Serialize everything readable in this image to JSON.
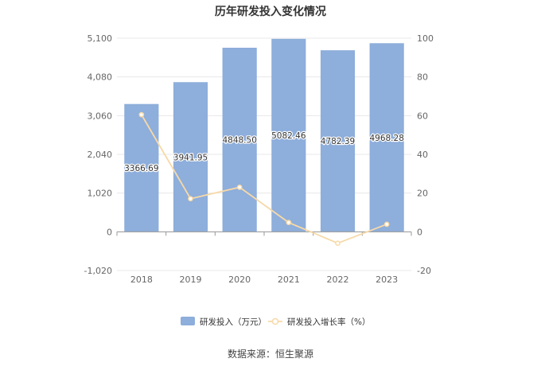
{
  "title": "历年研发投入变化情况",
  "source": "数据来源：恒生聚源",
  "chart_data": {
    "type": "bar",
    "categories": [
      "2018",
      "2019",
      "2020",
      "2021",
      "2022",
      "2023"
    ],
    "series": [
      {
        "name": "研发投入（万元）",
        "type": "bar",
        "axis": "left",
        "values": [
          3366.69,
          3941.95,
          4848.5,
          5082.46,
          4782.39,
          4968.28
        ],
        "data_labels": [
          "3366.69",
          "3941.95",
          "4848.50",
          "5082.46",
          "4782.39",
          "4968.28"
        ],
        "color": "#8eaedb"
      },
      {
        "name": "研发投入增长率（%）",
        "type": "line",
        "axis": "right",
        "values": [
          60.5,
          17.1,
          23.0,
          4.8,
          -5.9,
          3.9
        ],
        "color": "#f7d9a8"
      }
    ],
    "y_left": {
      "ticks": [
        -1020,
        0,
        1020,
        2040,
        3060,
        4080,
        5100
      ],
      "tick_labels": [
        "-1,020",
        "0",
        "1,020",
        "2,040",
        "3,060",
        "4,080",
        "5,100"
      ],
      "ylim": [
        -1020,
        5100
      ]
    },
    "y_right": {
      "ticks": [
        -20,
        0,
        20,
        40,
        60,
        80,
        100
      ],
      "tick_labels": [
        "-20",
        "0",
        "20",
        "40",
        "60",
        "80",
        "100"
      ],
      "ylim": [
        -20,
        100
      ]
    },
    "grid": true,
    "legend_position": "bottom"
  }
}
